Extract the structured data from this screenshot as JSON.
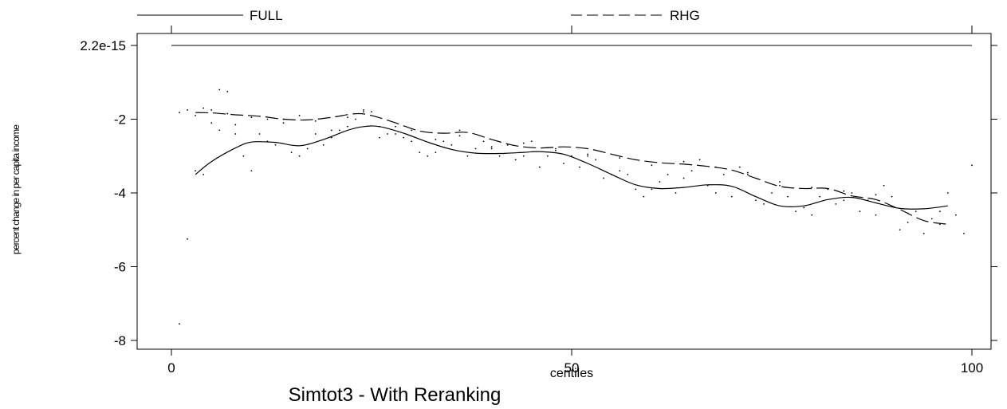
{
  "chart_data": {
    "type": "line",
    "title": "Simtot3 - With Reranking",
    "xlabel": "centiles",
    "ylabel": "percent change in per capita income",
    "xlim": [
      0,
      100
    ],
    "ylim": [
      -8,
      2.2e-15
    ],
    "x_ticks": [
      0,
      50,
      100
    ],
    "x_tick_labels": [
      "0",
      "50",
      "100"
    ],
    "y_ticks": [
      2.2e-15,
      -2,
      -4,
      -6,
      -8
    ],
    "y_tick_labels": [
      "2.2e-15",
      "-2",
      "-4",
      "-6",
      "-8"
    ],
    "grid": false,
    "legend_position": "top",
    "series": [
      {
        "name": "FULL",
        "style": "solid",
        "x": [
          3,
          5,
          8,
          10,
          13,
          16,
          19,
          22,
          24,
          26,
          29,
          32,
          35,
          38,
          41,
          44,
          46,
          49,
          52,
          55,
          58,
          61,
          64,
          67,
          70,
          73,
          76,
          79,
          82,
          85,
          88,
          91,
          94,
          97
        ],
        "y": [
          -3.5,
          -3.15,
          -2.78,
          -2.62,
          -2.63,
          -2.72,
          -2.55,
          -2.3,
          -2.2,
          -2.2,
          -2.38,
          -2.62,
          -2.82,
          -2.92,
          -2.93,
          -2.9,
          -2.88,
          -2.95,
          -3.2,
          -3.5,
          -3.78,
          -3.88,
          -3.85,
          -3.78,
          -3.82,
          -4.1,
          -4.35,
          -4.35,
          -4.18,
          -4.12,
          -4.27,
          -4.42,
          -4.43,
          -4.35
        ]
      },
      {
        "name": "RHG",
        "style": "dashed",
        "x": [
          3,
          5,
          8,
          11,
          14,
          17,
          20,
          23,
          25,
          28,
          31,
          34,
          37,
          40,
          43,
          46,
          49,
          52,
          55,
          58,
          61,
          64,
          67,
          70,
          73,
          76,
          79,
          82,
          85,
          88,
          91,
          94,
          97
        ],
        "y": [
          -1.82,
          -1.83,
          -1.88,
          -1.92,
          -2.0,
          -2.02,
          -1.95,
          -1.85,
          -1.9,
          -2.1,
          -2.32,
          -2.38,
          -2.36,
          -2.55,
          -2.72,
          -2.78,
          -2.75,
          -2.8,
          -2.95,
          -3.1,
          -3.18,
          -3.22,
          -3.28,
          -3.38,
          -3.6,
          -3.82,
          -3.88,
          -3.88,
          -4.08,
          -4.18,
          -4.45,
          -4.75,
          -4.85
        ]
      }
    ],
    "scatter_points": {
      "x": [
        1,
        2,
        3,
        4,
        5,
        6,
        7,
        8,
        9,
        10,
        11,
        12,
        13,
        14,
        15,
        16,
        17,
        18,
        19,
        20,
        21,
        22,
        23,
        24,
        25,
        26,
        27,
        28,
        29,
        30,
        31,
        32,
        33,
        34,
        35,
        36,
        37,
        38,
        39,
        40,
        41,
        42,
        43,
        44,
        45,
        46,
        47,
        48,
        49,
        50,
        51,
        52,
        53,
        54,
        55,
        56,
        57,
        58,
        59,
        60,
        61,
        62,
        63,
        64,
        65,
        66,
        67,
        68,
        69,
        70,
        71,
        72,
        73,
        74,
        75,
        76,
        77,
        78,
        79,
        80,
        81,
        82,
        83,
        84,
        85,
        86,
        87,
        88,
        89,
        90,
        91,
        92,
        93,
        94,
        95,
        96,
        97,
        98,
        99,
        100,
        1,
        2,
        3,
        4,
        5,
        6,
        7,
        8,
        10,
        12,
        14,
        16,
        18,
        20,
        22,
        24,
        26,
        28,
        30,
        33,
        36,
        40,
        44,
        48,
        52,
        56,
        60,
        64,
        68,
        72,
        76,
        80,
        84,
        88,
        92,
        96
      ],
      "y": [
        -7.55,
        -5.25,
        -3.4,
        -3.5,
        -1.75,
        -1.2,
        -1.25,
        -2.4,
        -3.0,
        -3.4,
        -2.4,
        -2.6,
        -2.7,
        -2.0,
        -2.9,
        -3.0,
        -2.8,
        -2.4,
        -2.7,
        -2.5,
        -2.3,
        -2.2,
        -2.0,
        -1.8,
        -1.8,
        -2.5,
        -2.4,
        -2.2,
        -2.5,
        -2.6,
        -2.9,
        -3.0,
        -2.9,
        -2.6,
        -2.7,
        -2.3,
        -3.0,
        -2.8,
        -2.6,
        -2.8,
        -3.0,
        -2.7,
        -3.1,
        -3.0,
        -2.6,
        -3.3,
        -3.0,
        -2.8,
        -3.2,
        -3.0,
        -3.3,
        -3.0,
        -3.1,
        -3.6,
        -3.5,
        -3.4,
        -3.5,
        -3.9,
        -4.1,
        -3.9,
        -3.7,
        -3.5,
        -4.0,
        -3.6,
        -3.4,
        -3.1,
        -3.8,
        -4.0,
        -3.5,
        -4.1,
        -3.3,
        -3.5,
        -4.2,
        -4.3,
        -4.0,
        -3.8,
        -4.1,
        -4.5,
        -4.4,
        -4.6,
        -4.1,
        -3.9,
        -4.3,
        -4.2,
        -4.0,
        -4.5,
        -4.2,
        -4.6,
        -3.8,
        -4.1,
        -5.0,
        -4.8,
        -4.5,
        -5.1,
        -4.7,
        -4.5,
        -4.0,
        -4.6,
        -5.1,
        -3.25,
        -1.82,
        -1.75,
        -1.9,
        -1.7,
        -2.1,
        -2.3,
        -1.85,
        -2.15,
        -1.95,
        -2.0,
        -2.1,
        -1.9,
        -2.05,
        -2.3,
        -1.95,
        -1.75,
        -2.2,
        -2.4,
        -2.3,
        -2.55,
        -2.45,
        -2.75,
        -2.65,
        -2.85,
        -2.95,
        -3.05,
        -3.25,
        -3.15,
        -3.3,
        -3.45,
        -3.7,
        -3.85,
        -3.95,
        -4.05,
        -4.55,
        -4.85
      ]
    }
  }
}
